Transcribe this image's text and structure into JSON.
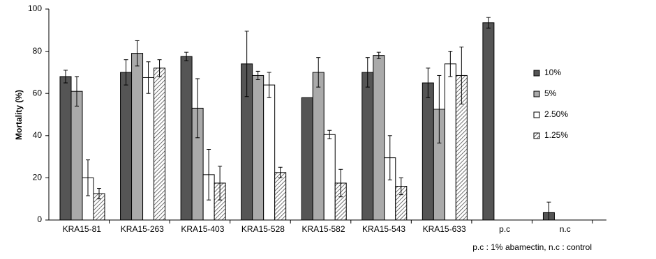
{
  "chart_data": {
    "type": "bar",
    "y_label": "Mortality (%)",
    "footnote": "p.c : 1% abamectin, n.c : control",
    "categories": [
      "KRA15-81",
      "KRA15-263",
      "KRA15-403",
      "KRA15-528",
      "KRA15-582",
      "KRA15-543",
      "KRA15-633",
      "p.c",
      "n.c"
    ],
    "series": [
      {
        "name": "10%",
        "color": "#555555",
        "values": [
          68,
          70,
          77.5,
          74,
          58,
          70,
          65,
          93.5,
          3.5
        ],
        "errors": [
          3,
          6,
          2,
          15.5,
          null,
          7,
          7,
          2.5,
          5
        ]
      },
      {
        "name": "5%",
        "color": "#aaaaaa",
        "values": [
          61,
          79,
          53,
          68.5,
          70,
          78,
          52.5,
          null,
          null
        ],
        "errors": [
          7,
          6,
          14,
          2,
          7,
          1.5,
          16,
          null,
          null
        ]
      },
      {
        "name": "2.50%",
        "color": "#ffffff",
        "values": [
          20,
          67.5,
          21.5,
          64,
          40.5,
          29.5,
          74,
          null,
          null
        ],
        "errors": [
          8.5,
          7.5,
          12,
          6,
          2,
          10.5,
          6,
          null,
          null
        ]
      },
      {
        "name": "1.25%",
        "color": "#ffffff",
        "hatch": true,
        "values": [
          12.5,
          72,
          17.5,
          22.5,
          17.5,
          16,
          68.5,
          null,
          null
        ],
        "errors": [
          2.5,
          4,
          8,
          2.5,
          6.5,
          4,
          13.5,
          null,
          null
        ]
      }
    ],
    "ylim": [
      0,
      100
    ],
    "yticks": [
      0,
      20,
      40,
      60,
      80,
      100
    ],
    "grid": false,
    "legend": "right"
  }
}
